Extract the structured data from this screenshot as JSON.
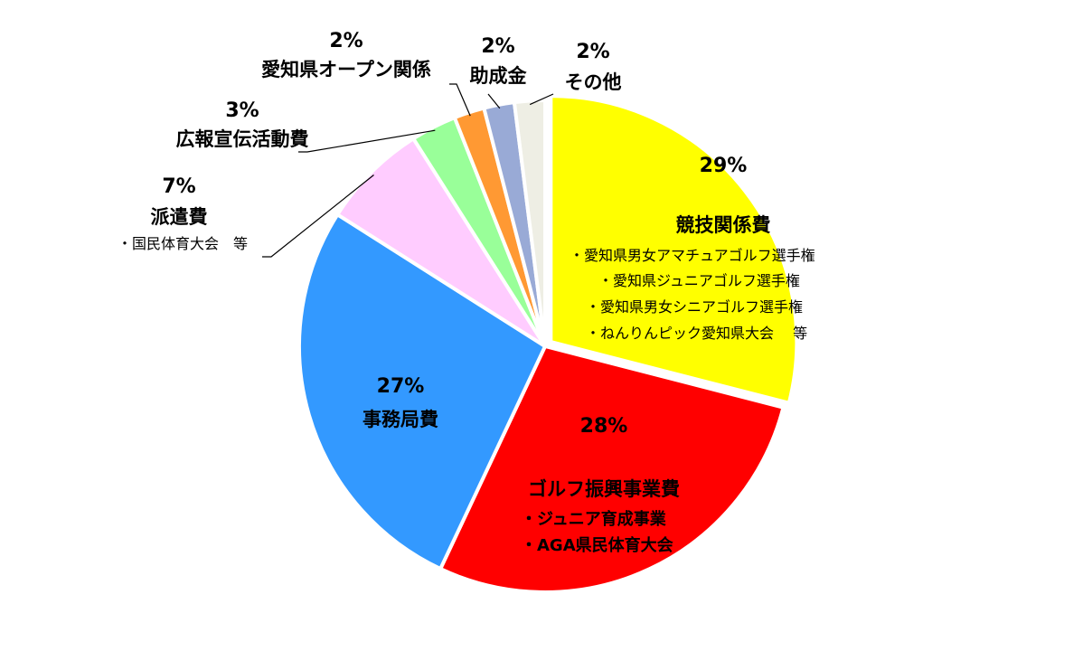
{
  "chart_data": {
    "type": "pie",
    "slices": [
      {
        "label": "競技関係費",
        "value": 29,
        "pct_label": "29%",
        "color": "#FFFF00",
        "details": [
          "・愛知県男女アマチュアゴルフ選手権",
          "・愛知県ジュニアゴルフ選手権",
          "・愛知県男女シニアゴルフ選手権",
          "・ねんりんピック愛知県大会　 等"
        ]
      },
      {
        "label": "ゴルフ振興事業費",
        "value": 28,
        "pct_label": "28%",
        "color": "#FF0000",
        "details": [
          "・ジュニア育成事業",
          "・AGA県民体育大会"
        ]
      },
      {
        "label": "事務局費",
        "value": 27,
        "pct_label": "27%",
        "color": "#3399FF",
        "details": []
      },
      {
        "label": "派遣費",
        "value": 7,
        "pct_label": "7%",
        "color": "#FFCCFF",
        "details": [
          "・国民体育大会　等"
        ]
      },
      {
        "label": "広報宣伝活動費",
        "value": 3,
        "pct_label": "3%",
        "color": "#99FF99",
        "details": []
      },
      {
        "label": "愛知県オープン関係",
        "value": 2,
        "pct_label": "2%",
        "color": "#FF9933",
        "details": []
      },
      {
        "label": "助成金",
        "value": 2,
        "pct_label": "2%",
        "color": "#99AAD6",
        "details": []
      },
      {
        "label": "その他",
        "value": 2,
        "pct_label": "2%",
        "color": "#EEEEE4",
        "details": []
      }
    ]
  }
}
